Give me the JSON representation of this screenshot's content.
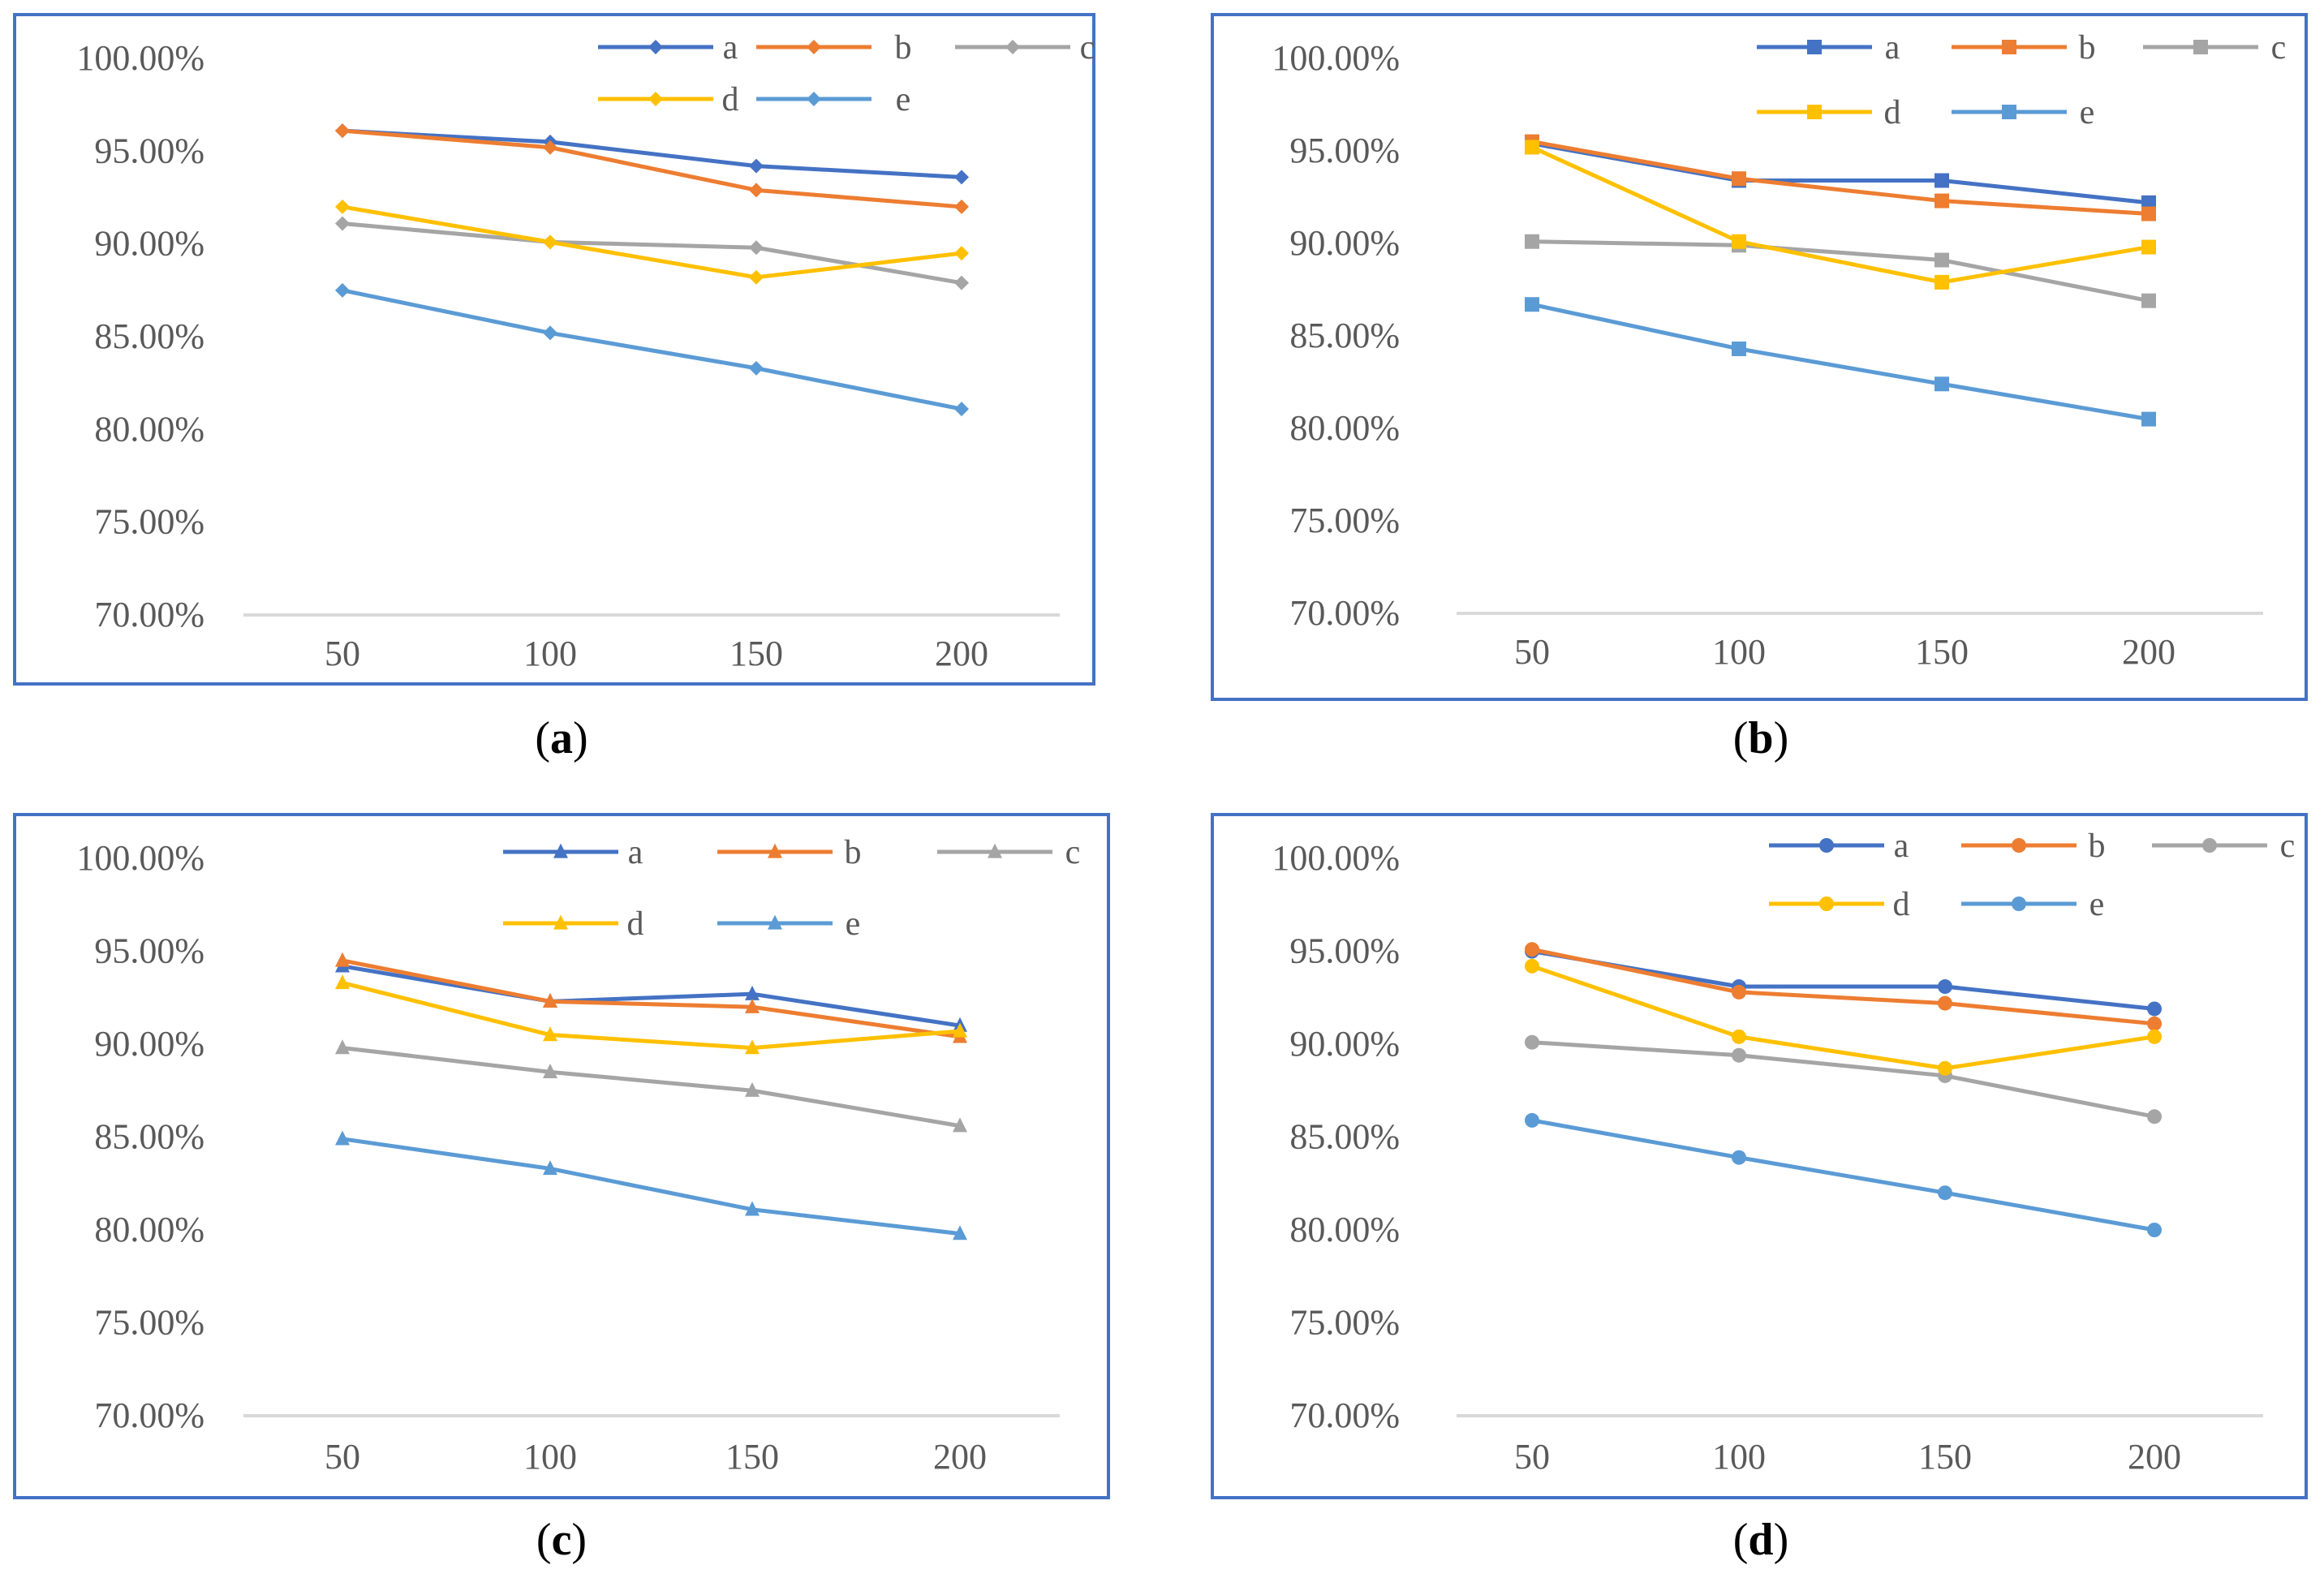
{
  "colors": {
    "a": "#4472C4",
    "b": "#ED7D31",
    "c": "#A5A5A5",
    "d": "#FFC000",
    "e": "#5B9BD5",
    "frame": "#4472C4",
    "grid": "#D9D9D9",
    "text": "#595959"
  },
  "chart_data": [
    {
      "type": "line",
      "caption": "(a)",
      "marker": "diamond",
      "categories": [
        "50",
        "100",
        "150",
        "200"
      ],
      "y_tick_labels": [
        "70.00%",
        "75.00%",
        "80.00%",
        "85.00%",
        "90.00%",
        "95.00%",
        "100.00%"
      ],
      "ylim": [
        0.7,
        1.0
      ],
      "legend": "top",
      "series": [
        {
          "name": "a",
          "values": [
            0.961,
            0.955,
            0.942,
            0.936
          ]
        },
        {
          "name": "b",
          "values": [
            0.961,
            0.952,
            0.929,
            0.92
          ]
        },
        {
          "name": "c",
          "values": [
            0.911,
            0.901,
            0.898,
            0.879
          ]
        },
        {
          "name": "d",
          "values": [
            0.92,
            0.901,
            0.882,
            0.895
          ]
        },
        {
          "name": "e",
          "values": [
            0.875,
            0.852,
            0.833,
            0.811
          ]
        }
      ]
    },
    {
      "type": "line",
      "caption": "(b)",
      "marker": "square",
      "categories": [
        "50",
        "100",
        "150",
        "200"
      ],
      "y_tick_labels": [
        "70.00%",
        "75.00%",
        "80.00%",
        "85.00%",
        "90.00%",
        "95.00%",
        "100.00%"
      ],
      "ylim": [
        0.7,
        1.0
      ],
      "legend": "top",
      "series": [
        {
          "name": "a",
          "values": [
            0.954,
            0.934,
            0.934,
            0.922
          ]
        },
        {
          "name": "b",
          "values": [
            0.955,
            0.935,
            0.923,
            0.916
          ]
        },
        {
          "name": "c",
          "values": [
            0.901,
            0.899,
            0.891,
            0.869
          ]
        },
        {
          "name": "d",
          "values": [
            0.952,
            0.901,
            0.879,
            0.898
          ]
        },
        {
          "name": "e",
          "values": [
            0.867,
            0.843,
            0.824,
            0.805
          ]
        }
      ]
    },
    {
      "type": "line",
      "caption": "(c)",
      "marker": "triangle",
      "categories": [
        "50",
        "100",
        "150",
        "200"
      ],
      "y_tick_labels": [
        "70.00%",
        "75.00%",
        "80.00%",
        "85.00%",
        "90.00%",
        "95.00%",
        "100.00%"
      ],
      "ylim": [
        0.7,
        1.0
      ],
      "legend": "top",
      "series": [
        {
          "name": "a",
          "values": [
            0.942,
            0.923,
            0.927,
            0.91
          ]
        },
        {
          "name": "b",
          "values": [
            0.945,
            0.923,
            0.92,
            0.904
          ]
        },
        {
          "name": "c",
          "values": [
            0.898,
            0.885,
            0.875,
            0.856
          ]
        },
        {
          "name": "d",
          "values": [
            0.933,
            0.905,
            0.898,
            0.907
          ]
        },
        {
          "name": "e",
          "values": [
            0.849,
            0.833,
            0.811,
            0.798
          ]
        }
      ]
    },
    {
      "type": "line",
      "caption": "(d)",
      "marker": "circle",
      "categories": [
        "50",
        "100",
        "150",
        "200"
      ],
      "y_tick_labels": [
        "70.00%",
        "75.00%",
        "80.00%",
        "85.00%",
        "90.00%",
        "95.00%",
        "100.00%"
      ],
      "ylim": [
        0.7,
        1.0
      ],
      "legend": "top",
      "series": [
        {
          "name": "a",
          "values": [
            0.95,
            0.931,
            0.931,
            0.919
          ]
        },
        {
          "name": "b",
          "values": [
            0.951,
            0.928,
            0.922,
            0.911
          ]
        },
        {
          "name": "c",
          "values": [
            0.901,
            0.894,
            0.883,
            0.861
          ]
        },
        {
          "name": "d",
          "values": [
            0.942,
            0.904,
            0.887,
            0.904
          ]
        },
        {
          "name": "e",
          "values": [
            0.859,
            0.839,
            0.82,
            0.8
          ]
        }
      ]
    }
  ]
}
